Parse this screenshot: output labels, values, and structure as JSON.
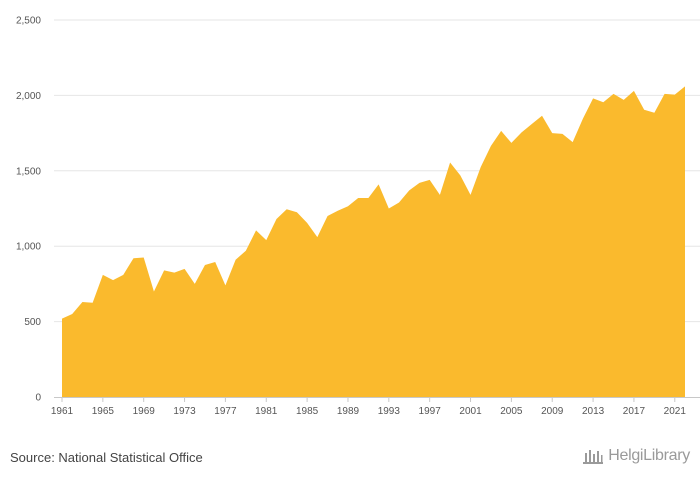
{
  "chart_data": {
    "type": "area",
    "x": [
      1961,
      1962,
      1963,
      1964,
      1965,
      1966,
      1967,
      1968,
      1969,
      1970,
      1971,
      1972,
      1973,
      1974,
      1975,
      1976,
      1977,
      1978,
      1979,
      1980,
      1981,
      1982,
      1983,
      1984,
      1985,
      1986,
      1987,
      1988,
      1989,
      1990,
      1991,
      1992,
      1993,
      1994,
      1995,
      1996,
      1997,
      1998,
      1999,
      2000,
      2001,
      2002,
      2003,
      2004,
      2005,
      2006,
      2007,
      2008,
      2009,
      2010,
      2011,
      2012,
      2013,
      2014,
      2015,
      2016,
      2017,
      2018,
      2019,
      2020,
      2021,
      2022
    ],
    "values": [
      520,
      550,
      630,
      625,
      810,
      775,
      810,
      920,
      925,
      700,
      840,
      825,
      850,
      750,
      875,
      895,
      740,
      910,
      970,
      1105,
      1040,
      1180,
      1245,
      1225,
      1155,
      1060,
      1200,
      1235,
      1265,
      1320,
      1320,
      1410,
      1250,
      1290,
      1370,
      1420,
      1440,
      1340,
      1555,
      1470,
      1340,
      1525,
      1665,
      1765,
      1685,
      1755,
      1810,
      1865,
      1750,
      1745,
      1690,
      1845,
      1980,
      1955,
      2010,
      1970,
      2030,
      1905,
      1885,
      2010,
      2005,
      2060
    ],
    "x_tick_labels": [
      "1961",
      "1965",
      "1969",
      "1973",
      "1977",
      "1981",
      "1985",
      "1989",
      "1993",
      "1997",
      "2001",
      "2005",
      "2009",
      "2013",
      "2017",
      "2021"
    ],
    "y_tick_labels": [
      "0",
      "500",
      "1,000",
      "1,500",
      "2,000",
      "2,500"
    ],
    "ylim": [
      0,
      2500
    ],
    "grid": "horizontal",
    "legend": "none",
    "fill_color": "#FABA2D",
    "title": "",
    "xlabel": "",
    "ylabel": ""
  },
  "footer": {
    "source": "Source: National Statistical Office",
    "logo_text": "HelgiLibrary"
  },
  "colors": {
    "grid": "#e6e6e6",
    "tick_text": "#555555",
    "logo": "#9a9a9a"
  }
}
